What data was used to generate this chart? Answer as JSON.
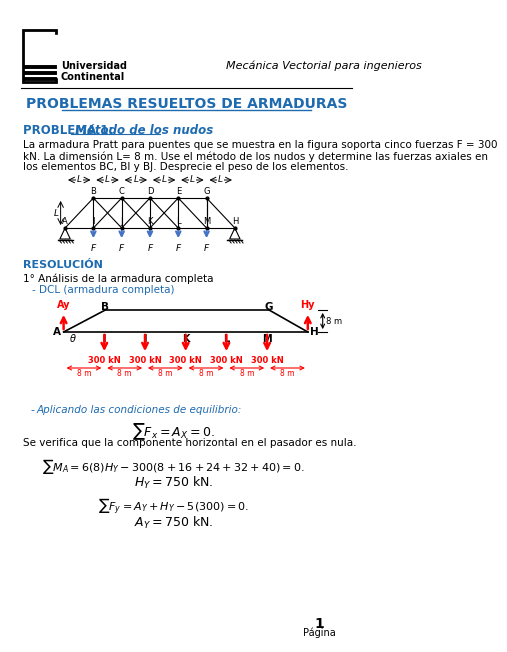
{
  "title_header": "Mecánica Vectorial para ingenieros",
  "main_title": "PROBLEMAS RESUELTOS DE ARMADURAS",
  "problem_label": "PROBLEMA 1:",
  "problem_subtitle": " Método de los nudos",
  "problem_text": "La armadura Pratt para puentes que se muestra en la figura soporta cinco fuerzas F = 300\nkN. La dimensión L= 8 m. Use el método de los nudos y determine las fuerzas axiales en\nlos elementos BC, BI y BJ. Desprecie el peso de los elementos.",
  "resolucion_label": "RESOLUCIÓN",
  "analisis_label": "1° Análisis de la armadura completa",
  "dcl_label": "DCL (armadura completa)",
  "equilibrio_label": "Aplicando las condiciones de equilibrio:",
  "eq1": "$\\sum F_x = A_X = 0.$",
  "eq_note": "Se verifica que la componente horizontal en el pasador es nula.",
  "eq2": "$\\sum M_A = 6(8)H_Y - 300(8 + 16 + 24 + 32 + 40) = 0.$",
  "eq3": "$H_Y = 750$ kN.",
  "eq4": "$\\sum F_y = A_Y + H_Y - 5(300) = 0.$",
  "eq5": "$A_Y = 750$ kN.",
  "page_label": "Página",
  "page_number": "1",
  "bg_color": "#ffffff",
  "blue_color": "#1F6BB0",
  "red_color": "#cc0000",
  "dark_color": "#000000"
}
